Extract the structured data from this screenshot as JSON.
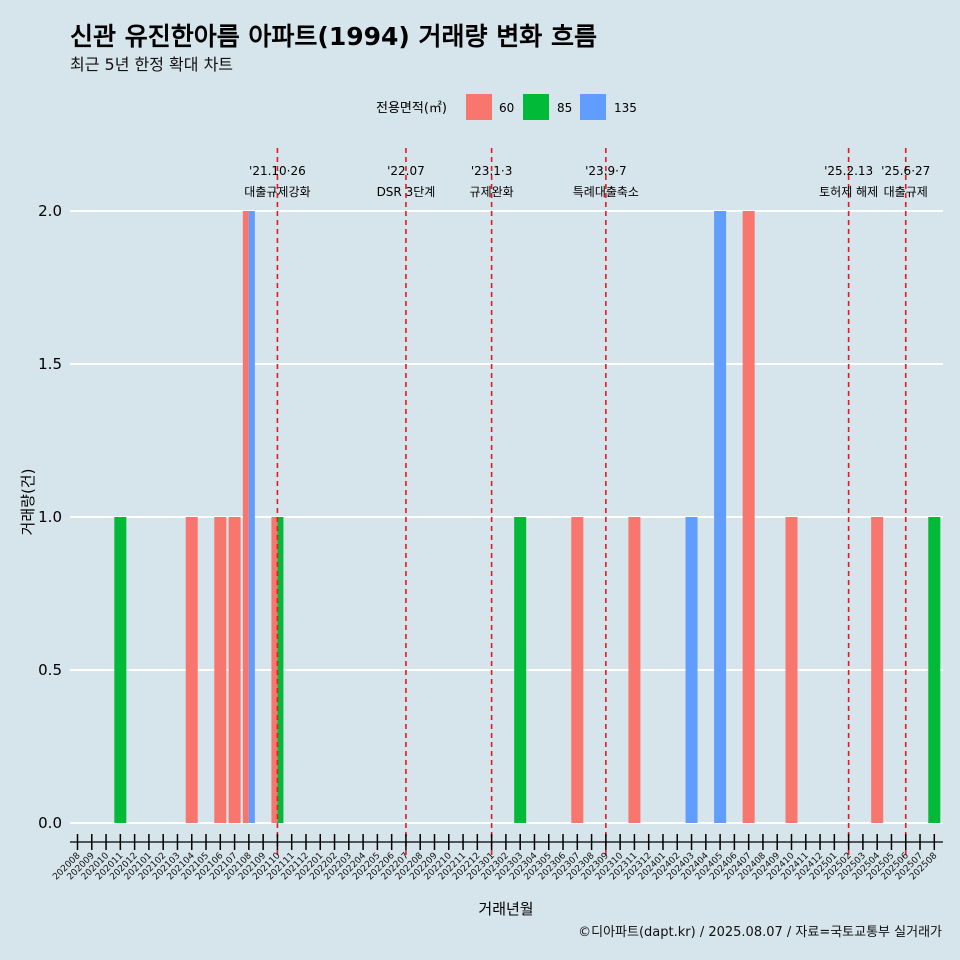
{
  "title": "신관 유진한아름 아파트(1994) 거래량 변화 흐름",
  "subtitle": "최근 5년 한정 확대 차트",
  "caption": "©디아파트(dapt.kr) / 2025.08.07 / 자료=국토교통부 실거래가",
  "colors": {
    "background": "#d6e4eb",
    "60": "#f8766d",
    "85": "#00ba38",
    "135": "#619cff",
    "vline": "#e41a1c"
  },
  "chart_data": {
    "type": "bar",
    "xlabel": "거래년월",
    "ylabel": "거래량(건)",
    "ylim": [
      0,
      2
    ],
    "yticks": [
      "0.0",
      "0.5",
      "1.0",
      "1.5",
      "2.0"
    ],
    "legend": {
      "title": "전용면적(㎡)",
      "position": "top",
      "items": [
        "60",
        "85",
        "135"
      ]
    },
    "categories": [
      "202008",
      "202009",
      "202010",
      "202011",
      "202012",
      "202101",
      "202102",
      "202103",
      "202104",
      "202105",
      "202106",
      "202107",
      "202108",
      "202109",
      "202110",
      "202111",
      "202112",
      "202201",
      "202202",
      "202203",
      "202204",
      "202205",
      "202206",
      "202207",
      "202208",
      "202209",
      "202210",
      "202211",
      "202212",
      "202301",
      "202302",
      "202303",
      "202304",
      "202305",
      "202306",
      "202307",
      "202308",
      "202309",
      "202310",
      "202311",
      "202312",
      "202401",
      "202402",
      "202403",
      "202404",
      "202405",
      "202406",
      "202407",
      "202408",
      "202409",
      "202410",
      "202411",
      "202412",
      "202501",
      "202502",
      "202503",
      "202504",
      "202505",
      "202506",
      "202507",
      "202508"
    ],
    "bars": [
      {
        "month": "202011",
        "area": "85",
        "value": 1
      },
      {
        "month": "202104",
        "area": "60",
        "value": 1
      },
      {
        "month": "202106",
        "area": "60",
        "value": 1
      },
      {
        "month": "202107",
        "area": "60",
        "value": 1
      },
      {
        "month": "202108",
        "area": "60",
        "value": 2
      },
      {
        "month": "202108",
        "area": "135",
        "value": 2
      },
      {
        "month": "202110",
        "area": "60",
        "value": 1
      },
      {
        "month": "202110",
        "area": "85",
        "value": 1
      },
      {
        "month": "202303",
        "area": "85",
        "value": 1
      },
      {
        "month": "202307",
        "area": "60",
        "value": 1
      },
      {
        "month": "202311",
        "area": "60",
        "value": 1
      },
      {
        "month": "202403",
        "area": "135",
        "value": 1
      },
      {
        "month": "202405",
        "area": "135",
        "value": 2
      },
      {
        "month": "202407",
        "area": "60",
        "value": 2
      },
      {
        "month": "202410",
        "area": "60",
        "value": 1
      },
      {
        "month": "202504",
        "area": "60",
        "value": 1
      },
      {
        "month": "202508",
        "area": "85",
        "value": 1
      }
    ],
    "annotations": [
      {
        "month": "202110",
        "date": "'21.10·26",
        "label": "대출규제강화"
      },
      {
        "month": "202207",
        "date": "'22.07",
        "label": "DSR 3단계"
      },
      {
        "month": "202301",
        "date": "'23.1·3",
        "label": "규제완화"
      },
      {
        "month": "202309",
        "date": "'23.9·7",
        "label": "특례대출축소"
      },
      {
        "month": "202502",
        "date": "'25.2.13",
        "label": "토허제 해제"
      },
      {
        "month": "202506",
        "date": "'25.6·27",
        "label": "대출규제"
      }
    ]
  }
}
